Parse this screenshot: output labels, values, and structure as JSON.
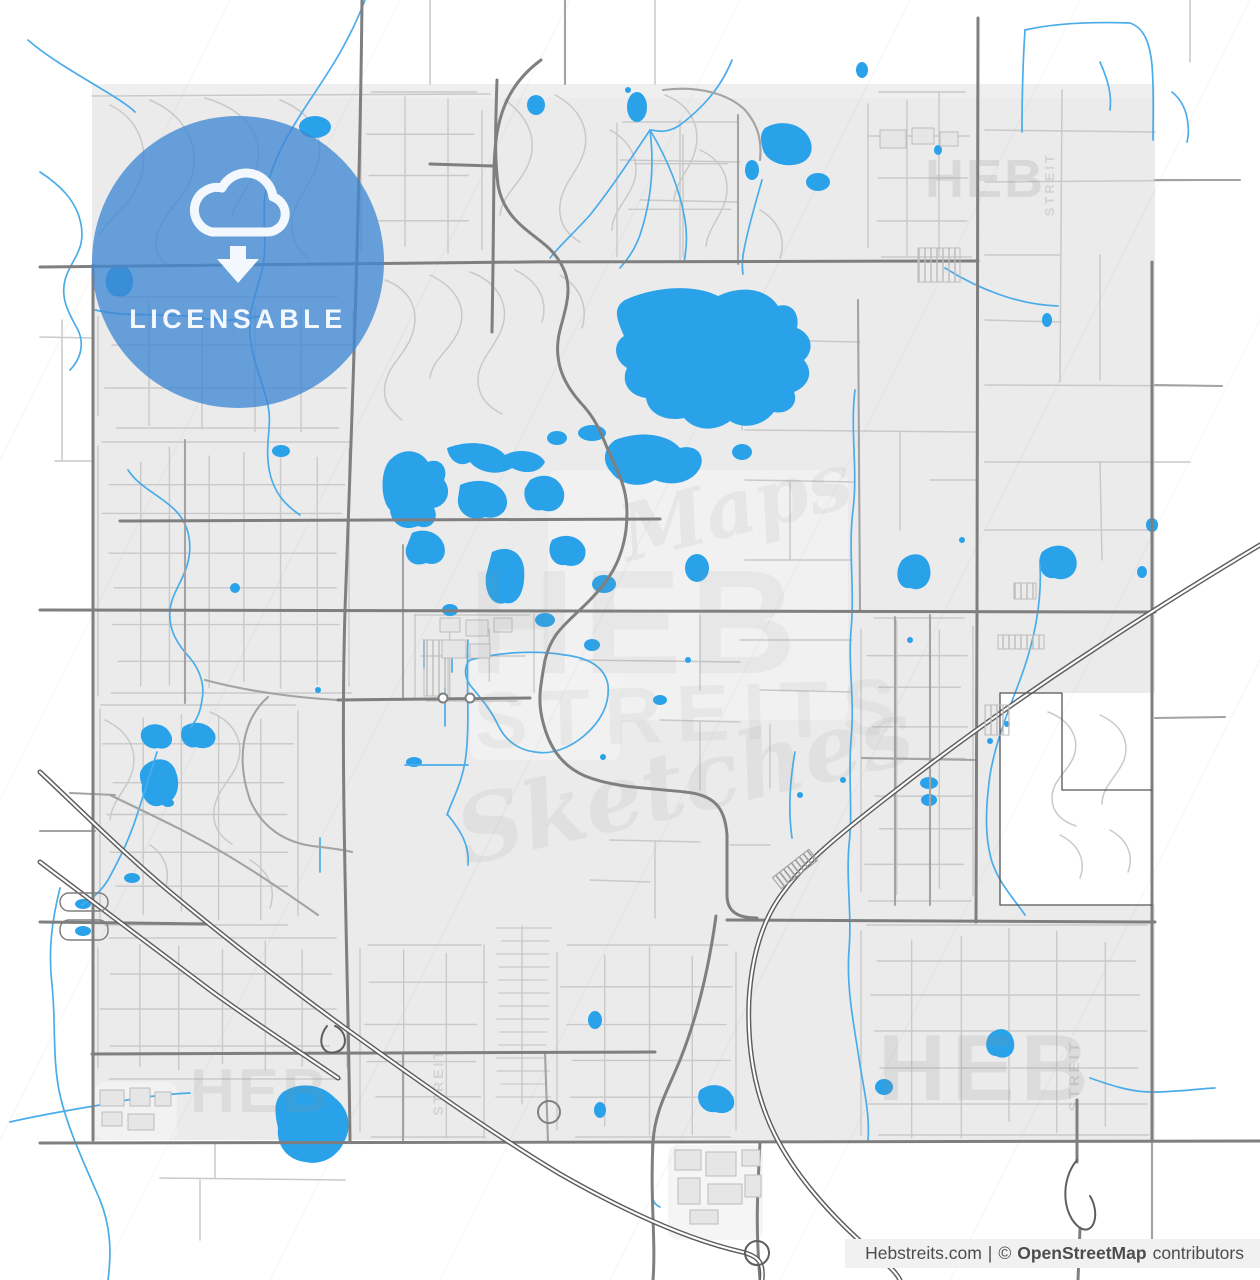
{
  "badge": {
    "label": "LICENSABLE",
    "icon": "cloud-download-icon"
  },
  "watermark": {
    "brand": "HEB",
    "streits": "STREITS",
    "streit_vertical": "STREIT",
    "script_maps": "Maps",
    "script_sketches": "Sketches"
  },
  "footer": {
    "site": "Hebstreits.com",
    "divider": "|",
    "copyright": "©",
    "attribution": "OpenStreetMap",
    "suffix": "contributors"
  },
  "colors": {
    "page_background": "#ffffff",
    "map_background": "#ebebeb",
    "patch_light": "#f3f3f3",
    "water": "#2aa2e9",
    "stream": "#4aacea",
    "road_minor": "#c9c9c9",
    "road_medium": "#a3a3a3",
    "road_major": "#7f7f7f",
    "highway": "#5e5e5e",
    "boundary": "#555555",
    "building_fill": "#e6e6e6",
    "building_stroke": "#bcbcbc",
    "badge_fill": "#3f88d4",
    "badge_content": "#f2f8fd",
    "watermark_tint": "#8f8f8f",
    "footer_background": "#f1f1f1",
    "footer_text": "#4d4d4d"
  }
}
